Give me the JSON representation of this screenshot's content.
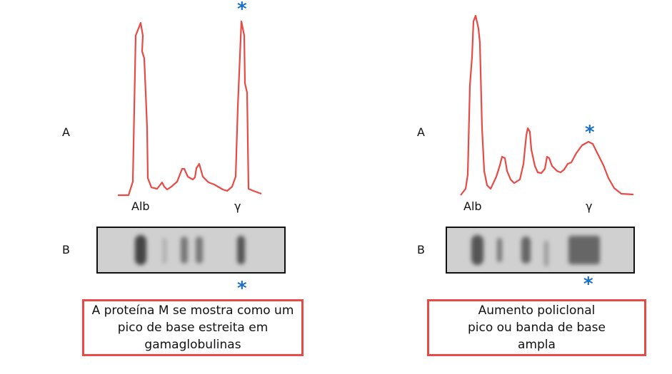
{
  "row_labels": {
    "a": "A",
    "b": "B"
  },
  "left": {
    "peak_labels": {
      "albumin": "Alb",
      "gamma": "γ"
    },
    "marker": "*",
    "caption": "A proteína M se mostra como um pico de base estreita em gamaglobulinas"
  },
  "right": {
    "peak_labels": {
      "albumin": "Alb",
      "gamma": "γ"
    },
    "marker": "*",
    "caption": "Aumento policlonal pico ou banda de base ampla"
  },
  "colors": {
    "curve": "#e84a45",
    "marker": "#1a6fc4",
    "caption_border": "#e84a45",
    "gel": "#d0d0d0",
    "band": "#555555"
  }
}
